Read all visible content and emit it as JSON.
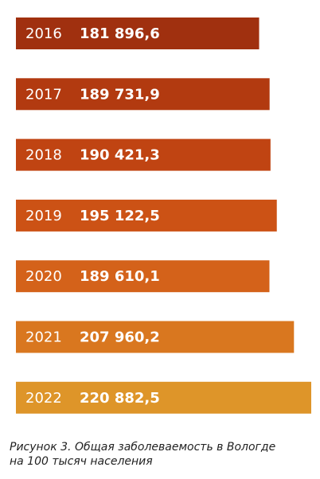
{
  "chart_data": {
    "type": "bar",
    "orientation": "horizontal",
    "title": "Рисунок 3. Общая заболеваемость в Вологде на 100 тысяч населения",
    "categories": [
      "2016",
      "2017",
      "2018",
      "2019",
      "2020",
      "2021",
      "2022"
    ],
    "values": [
      181896.6,
      189731.9,
      190421.3,
      195122.5,
      189610.1,
      207960.2,
      220882.5
    ],
    "value_labels": [
      "181 896,6",
      "189 731,9",
      "190 421,3",
      "195 122,5",
      "189 610,1",
      "207 960,2",
      "220 882,5"
    ],
    "colors": [
      "#a0300f",
      "#b23a10",
      "#c04412",
      "#cc5215",
      "#d4621a",
      "#d9771f",
      "#de9529"
    ]
  }
}
